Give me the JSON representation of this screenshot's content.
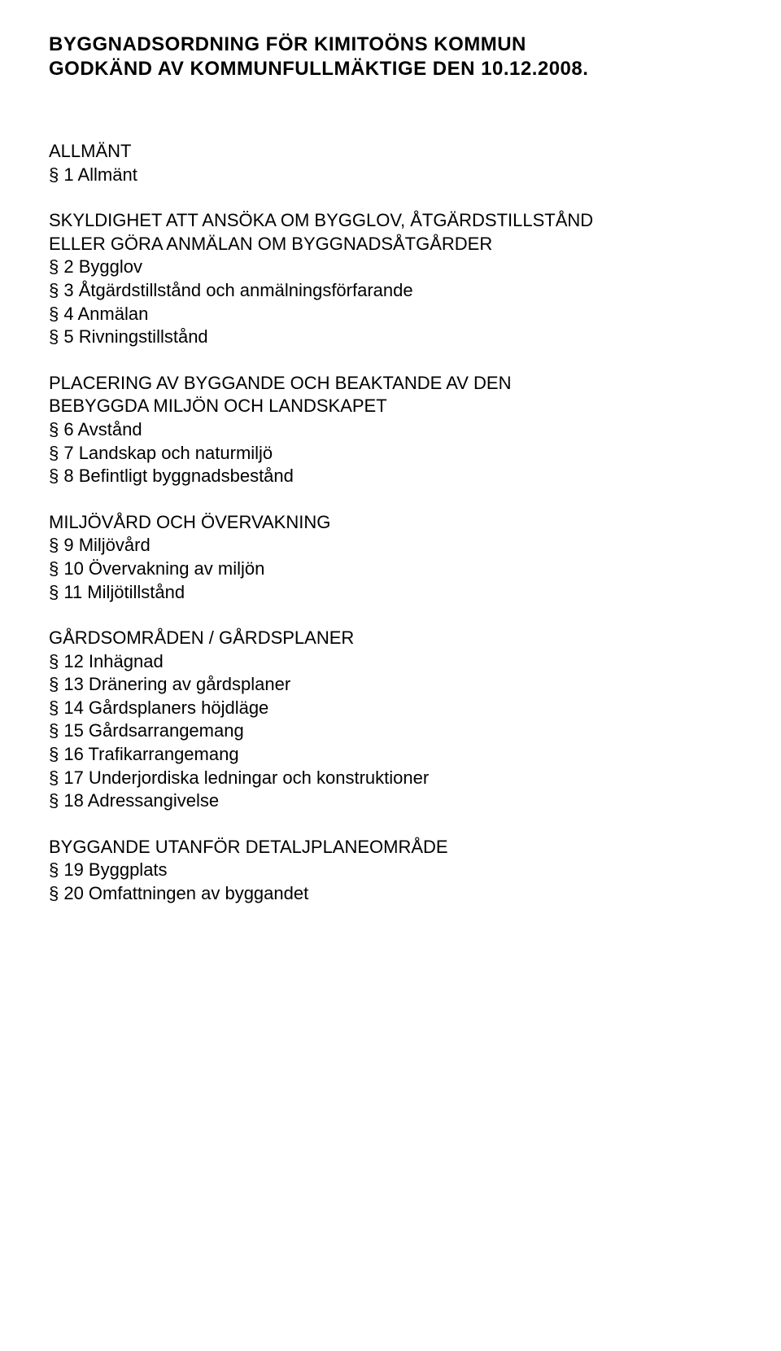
{
  "title": "BYGGNADSORDNING FÖR KIMITOÖNS KOMMUN\nGODKÄND AV KOMMUNFULLMÄKTIGE DEN 10.12.2008.",
  "sections": [
    {
      "heading": "ALLMÄNT",
      "groups": [
        {
          "items": [
            "§ 1 Allmänt"
          ]
        }
      ]
    },
    {
      "heading": "SKYLDIGHET ATT ANSÖKA OM BYGGLOV, ÅTGÄRDSTILLSTÅND\nELLER GÖRA ANMÄLAN OM BYGGNADSÅTGÅRDER",
      "groups": [
        {
          "items": [
            "§ 2 Bygglov",
            "§ 3 Åtgärdstillstånd och anmälningsförfarande",
            "§ 4 Anmälan",
            "§ 5 Rivningstillstånd"
          ]
        }
      ]
    },
    {
      "heading": "PLACERING AV BYGGANDE OCH BEAKTANDE AV DEN\nBEBYGGDA MILJÖN OCH LANDSKAPET",
      "groups": [
        {
          "items": [
            "§ 6 Avstånd",
            "§ 7 Landskap och naturmiljö",
            "§ 8 Befintligt byggnadsbestånd"
          ]
        }
      ]
    },
    {
      "heading": "MILJÖVÅRD OCH ÖVERVAKNING",
      "groups": [
        {
          "items": [
            "§ 9 Miljövård",
            "§ 10 Övervakning av miljön",
            "§ 11 Miljötillstånd"
          ]
        }
      ]
    },
    {
      "heading": "GÅRDSOMRÅDEN / GÅRDSPLANER",
      "groups": [
        {
          "items": [
            "§ 12 Inhägnad",
            "§ 13 Dränering av gårdsplaner",
            "§ 14 Gårdsplaners höjdläge",
            "§ 15 Gårdsarrangemang",
            "§ 16 Trafikarrangemang",
            "§ 17 Underjordiska ledningar och konstruktioner",
            "§ 18 Adressangivelse"
          ]
        }
      ]
    },
    {
      "heading": "BYGGANDE UTANFÖR DETALJPLANEOMRÅDE",
      "groups": [
        {
          "items": [
            "§ 19 Byggplats",
            "§ 20 Omfattningen av byggandet"
          ]
        }
      ]
    }
  ]
}
